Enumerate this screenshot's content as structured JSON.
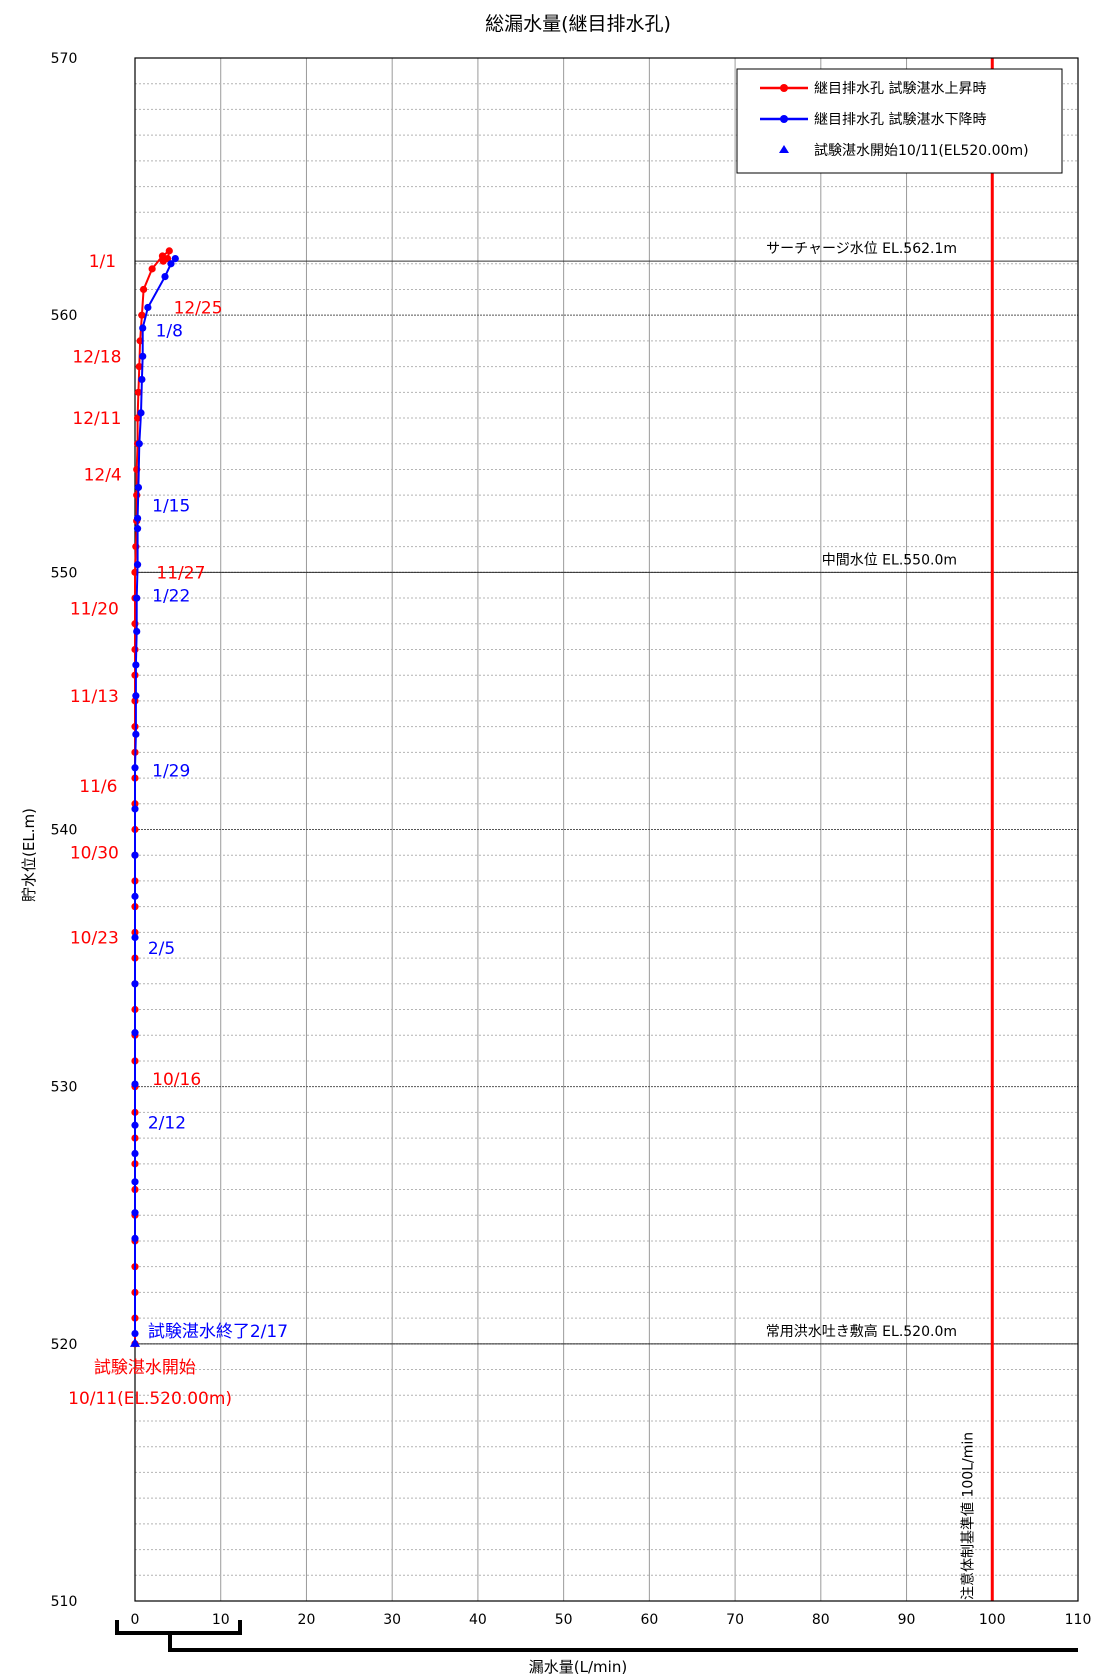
{
  "chart_data": {
    "type": "line",
    "title": "総漏水量(継目排水孔)",
    "xlabel": "漏水量(L/min)",
    "ylabel": "貯水位(EL.m)",
    "xlim": [
      0,
      110
    ],
    "ylim": [
      510,
      570
    ],
    "x_ticks": [
      "0",
      "10",
      "20",
      "30",
      "40",
      "50",
      "60",
      "70",
      "80",
      "90",
      "100",
      "110"
    ],
    "y_ticks": [
      "510",
      "520",
      "530",
      "540",
      "550",
      "560",
      "570"
    ],
    "grid": true,
    "legend_position": "top-right",
    "legend": [
      {
        "label": "継目排水孔  試験湛水上昇時",
        "color": "#ff0000",
        "marker": "circle-line"
      },
      {
        "label": "継目排水孔  試験湛水下降時",
        "color": "#0000ff",
        "marker": "circle-line"
      },
      {
        "label": "試験湛水開始10/11(EL520.00m)",
        "color": "#0000ff",
        "marker": "triangle"
      }
    ],
    "series": [
      {
        "name": "継目排水孔  試験湛水上昇時",
        "color": "#ff0000",
        "points": [
          [
            0,
            520
          ],
          [
            0,
            521
          ],
          [
            0,
            522
          ],
          [
            0,
            523
          ],
          [
            0,
            524
          ],
          [
            0,
            525
          ],
          [
            0,
            526
          ],
          [
            0,
            527
          ],
          [
            0,
            528
          ],
          [
            0,
            529
          ],
          [
            0,
            530
          ],
          [
            0,
            531
          ],
          [
            0,
            532
          ],
          [
            0,
            533
          ],
          [
            0,
            534
          ],
          [
            0,
            535
          ],
          [
            0,
            536
          ],
          [
            0,
            537
          ],
          [
            0,
            538
          ],
          [
            0,
            539
          ],
          [
            0,
            540
          ],
          [
            0,
            541
          ],
          [
            0,
            542
          ],
          [
            0,
            543
          ],
          [
            0,
            544
          ],
          [
            0,
            545
          ],
          [
            0,
            546
          ],
          [
            0,
            547
          ],
          [
            0,
            548
          ],
          [
            0,
            549
          ],
          [
            0,
            550
          ],
          [
            0.1,
            551
          ],
          [
            0.2,
            552
          ],
          [
            0.2,
            553
          ],
          [
            0.2,
            554
          ],
          [
            0.3,
            555
          ],
          [
            0.3,
            556
          ],
          [
            0.4,
            557
          ],
          [
            0.5,
            558
          ],
          [
            0.6,
            559
          ],
          [
            0.8,
            560
          ],
          [
            1.0,
            561
          ],
          [
            2.0,
            561.8
          ],
          [
            3.2,
            562.3
          ],
          [
            4.0,
            562.5
          ],
          [
            3.8,
            562.2
          ],
          [
            3.3,
            562.1
          ]
        ]
      },
      {
        "name": "継目排水孔  試験湛水下降時",
        "color": "#0000ff",
        "points": [
          [
            4.7,
            562.2
          ],
          [
            4.2,
            562.0
          ],
          [
            3.5,
            561.5
          ],
          [
            1.5,
            560.3
          ],
          [
            0.9,
            559.5
          ],
          [
            0.9,
            558.4
          ],
          [
            0.8,
            557.5
          ],
          [
            0.7,
            556.2
          ],
          [
            0.5,
            555.0
          ],
          [
            0.4,
            553.3
          ],
          [
            0.3,
            552.1
          ],
          [
            0.3,
            551.7
          ],
          [
            0.3,
            550.3
          ],
          [
            0.2,
            549.0
          ],
          [
            0.2,
            547.7
          ],
          [
            0.1,
            546.4
          ],
          [
            0.1,
            545.2
          ],
          [
            0.1,
            543.7
          ],
          [
            0.0,
            542.4
          ],
          [
            0.0,
            540.8
          ],
          [
            0.0,
            539.0
          ],
          [
            0.0,
            537.4
          ],
          [
            0.0,
            535.8
          ],
          [
            0.0,
            534.0
          ],
          [
            0.0,
            532.1
          ],
          [
            0.0,
            530.1
          ],
          [
            0.0,
            528.5
          ],
          [
            0.0,
            527.4
          ],
          [
            0.0,
            526.3
          ],
          [
            0.0,
            525.1
          ],
          [
            0.0,
            524.1
          ],
          [
            0.0,
            520.4
          ]
        ]
      }
    ],
    "start_marker": {
      "x": 0,
      "y": 520.0,
      "color": "#0000ff"
    },
    "reference_lines": [
      {
        "label": "サーチャージ水位  EL.562.1m",
        "y": 562.1
      },
      {
        "label": "中間水位  EL.550.0m",
        "y": 550.0
      },
      {
        "label": "常用洪水吐き敷高  EL.520.0m",
        "y": 520.0
      }
    ],
    "threshold": {
      "x": 100,
      "color": "#ff0000",
      "label": "注意体制基準値  100L/min"
    },
    "annotations": [
      {
        "text": "1/1",
        "color": "#ff0000",
        "x": -5.4,
        "y": 562.1
      },
      {
        "text": "12/25",
        "color": "#ff0000",
        "x": 4.5,
        "y": 560.3
      },
      {
        "text": "1/8",
        "color": "#0000ff",
        "x": 2.4,
        "y": 559.4
      },
      {
        "text": "12/18",
        "color": "#ff0000",
        "x": -7.3,
        "y": 558.4
      },
      {
        "text": "12/11",
        "color": "#ff0000",
        "x": -7.3,
        "y": 556.0
      },
      {
        "text": "12/4",
        "color": "#ff0000",
        "x": -6.0,
        "y": 553.8
      },
      {
        "text": "1/15",
        "color": "#0000ff",
        "x": 2.0,
        "y": 552.6
      },
      {
        "text": "11/27",
        "color": "#ff0000",
        "x": 2.5,
        "y": 550.0
      },
      {
        "text": "1/22",
        "color": "#0000ff",
        "x": 2.0,
        "y": 549.1
      },
      {
        "text": "11/20",
        "color": "#ff0000",
        "x": -7.6,
        "y": 548.6
      },
      {
        "text": "11/13",
        "color": "#ff0000",
        "x": -7.6,
        "y": 545.2
      },
      {
        "text": "1/29",
        "color": "#0000ff",
        "x": 2.0,
        "y": 542.3
      },
      {
        "text": "11/6",
        "color": "#ff0000",
        "x": -6.5,
        "y": 541.7
      },
      {
        "text": "10/30",
        "color": "#ff0000",
        "x": -7.6,
        "y": 539.1
      },
      {
        "text": "10/23",
        "color": "#ff0000",
        "x": -7.6,
        "y": 535.8
      },
      {
        "text": "2/5",
        "color": "#0000ff",
        "x": 1.5,
        "y": 535.4
      },
      {
        "text": "10/16",
        "color": "#ff0000",
        "x": 2.0,
        "y": 530.3
      },
      {
        "text": "2/12",
        "color": "#0000ff",
        "x": 1.5,
        "y": 528.6
      },
      {
        "text": "試験湛水終了2/17",
        "color": "#0000ff",
        "x": 1.5,
        "y": 520.5
      },
      {
        "text": "試験湛水開始",
        "color": "#ff0000",
        "x": -4.8,
        "y": 519.1
      },
      {
        "text": "10/11(EL.520.00m)",
        "color": "#ff0000",
        "x": -7.8,
        "y": 517.9
      }
    ]
  }
}
